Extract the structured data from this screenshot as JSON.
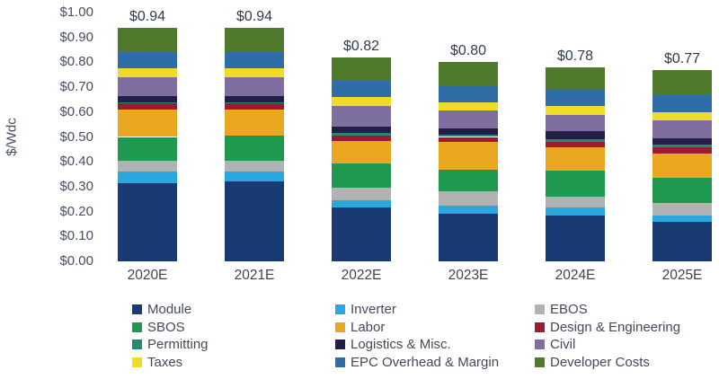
{
  "chart_data": {
    "type": "bar",
    "stacked": true,
    "title": "",
    "xlabel": "",
    "ylabel": "$/Wdc",
    "ylim": [
      0,
      1.0
    ],
    "ytick_step": 0.1,
    "yticks": [
      "$0.00",
      "$0.10",
      "$0.20",
      "$0.30",
      "$0.40",
      "$0.50",
      "$0.60",
      "$0.70",
      "$0.80",
      "$0.90",
      "$1.00"
    ],
    "grid": false,
    "legend_position": "bottom",
    "categories": [
      "2020E",
      "2021E",
      "2022E",
      "2023E",
      "2024E",
      "2025E"
    ],
    "totals": [
      "$0.94",
      "$0.94",
      "$0.82",
      "$0.80",
      "$0.78",
      "$0.77"
    ],
    "series": [
      {
        "name": "Module",
        "color": "#193a72",
        "values": [
          0.315,
          0.32,
          0.215,
          0.19,
          0.185,
          0.16
        ]
      },
      {
        "name": "Inverter",
        "color": "#29a8e0",
        "values": [
          0.045,
          0.04,
          0.03,
          0.035,
          0.03,
          0.025
        ]
      },
      {
        "name": "EBOS",
        "color": "#b2b2b2",
        "values": [
          0.045,
          0.045,
          0.05,
          0.055,
          0.045,
          0.05
        ]
      },
      {
        "name": "SBOS",
        "color": "#1f9850",
        "values": [
          0.095,
          0.1,
          0.1,
          0.09,
          0.105,
          0.1
        ]
      },
      {
        "name": "Labor",
        "color": "#e9a820",
        "values": [
          0.11,
          0.105,
          0.09,
          0.11,
          0.095,
          0.1
        ]
      },
      {
        "name": "Design & Engineering",
        "color": "#9c1b33",
        "values": [
          0.025,
          0.025,
          0.02,
          0.02,
          0.02,
          0.025
        ]
      },
      {
        "name": "Permitting",
        "color": "#218a6f",
        "values": [
          0.005,
          0.005,
          0.01,
          0.01,
          0.01,
          0.01
        ]
      },
      {
        "name": "Logistics & Misc.",
        "color": "#221e46",
        "values": [
          0.025,
          0.025,
          0.025,
          0.025,
          0.035,
          0.025
        ]
      },
      {
        "name": "Civil",
        "color": "#7e6fa0",
        "values": [
          0.075,
          0.075,
          0.085,
          0.07,
          0.065,
          0.07
        ]
      },
      {
        "name": "Taxes",
        "color": "#f0dc28",
        "values": [
          0.035,
          0.035,
          0.035,
          0.035,
          0.035,
          0.035
        ]
      },
      {
        "name": "EPC Overhead & Margin",
        "color": "#2f6da6",
        "values": [
          0.065,
          0.065,
          0.065,
          0.065,
          0.065,
          0.07
        ]
      },
      {
        "name": "Developer Costs",
        "color": "#507a2b",
        "values": [
          0.1,
          0.1,
          0.095,
          0.095,
          0.09,
          0.1
        ]
      }
    ]
  }
}
